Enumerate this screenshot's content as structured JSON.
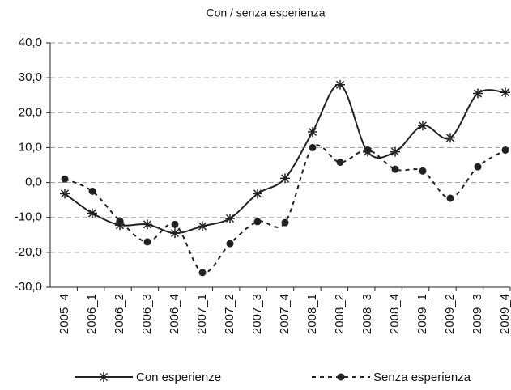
{
  "chart_data": {
    "type": "line",
    "title": "Con / senza esperienza",
    "categories": [
      "2005_4",
      "2006_1",
      "2006_2",
      "2006_3",
      "2006_4",
      "2007_1",
      "2007_2",
      "2007_3",
      "2007_4",
      "2008_1",
      "2008_2",
      "2008_3",
      "2008_4",
      "2009_1",
      "2009_2",
      "2009_3",
      "2009_4"
    ],
    "series": [
      {
        "name": "Con esperienze",
        "color": "#222222",
        "marker": "star",
        "dashed": false,
        "values": [
          -3.2,
          -8.8,
          -12.2,
          -12.0,
          -14.5,
          -12.5,
          -10.3,
          -3.2,
          1.2,
          14.5,
          28.0,
          8.8,
          8.8,
          16.3,
          12.8,
          25.5,
          25.8
        ]
      },
      {
        "name": "Senza esperienza",
        "color": "#222222",
        "marker": "circle",
        "dashed": true,
        "values": [
          1.0,
          -2.5,
          -11.0,
          -17.0,
          -12.0,
          -25.8,
          -17.5,
          -11.2,
          -11.5,
          10.0,
          5.8,
          9.3,
          3.8,
          3.3,
          -4.5,
          4.5,
          9.3
        ]
      }
    ],
    "ylim": [
      -30,
      40
    ],
    "yticks": [
      {
        "value": -30,
        "label": "-30,0"
      },
      {
        "value": -20,
        "label": "-20,0"
      },
      {
        "value": -10,
        "label": "-10,0"
      },
      {
        "value": 0,
        "label": "0,0"
      },
      {
        "value": 10,
        "label": "10,0"
      },
      {
        "value": 20,
        "label": "20,0"
      },
      {
        "value": 30,
        "label": "30,0"
      },
      {
        "value": 40,
        "label": "40,0"
      }
    ],
    "grid": true
  }
}
